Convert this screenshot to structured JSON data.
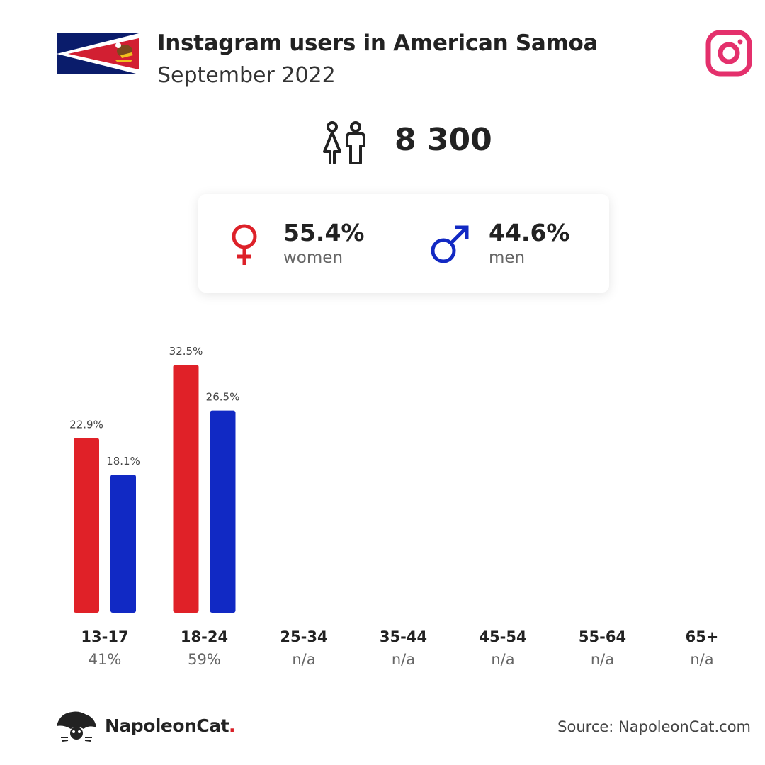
{
  "header": {
    "title": "Instagram users in American Samoa",
    "subtitle": "September 2022"
  },
  "total": {
    "value": "8 300"
  },
  "gender": {
    "women": {
      "pct": "55.4%",
      "label": "women",
      "color": "#dd2129"
    },
    "men": {
      "pct": "44.6%",
      "label": "men",
      "color": "#1229c3"
    }
  },
  "colors": {
    "women": "#e02128",
    "men": "#1129c4",
    "instagram": "#e4306c"
  },
  "chart_data": {
    "type": "bar",
    "categories": [
      "13-17",
      "18-24",
      "25-34",
      "35-44",
      "45-54",
      "55-64",
      "65+"
    ],
    "category_totals": [
      "41%",
      "59%",
      "n/a",
      "n/a",
      "n/a",
      "n/a",
      "n/a"
    ],
    "series": [
      {
        "name": "women",
        "values": [
          22.9,
          32.5,
          null,
          null,
          null,
          null,
          null
        ]
      },
      {
        "name": "men",
        "values": [
          18.1,
          26.5,
          null,
          null,
          null,
          null,
          null
        ]
      }
    ],
    "value_suffix": "%",
    "ylim": [
      0,
      35
    ],
    "grid": false
  },
  "footer": {
    "brand": "NapoleonCat",
    "brand_dot": ".",
    "source": "Source: NapoleonCat.com"
  }
}
